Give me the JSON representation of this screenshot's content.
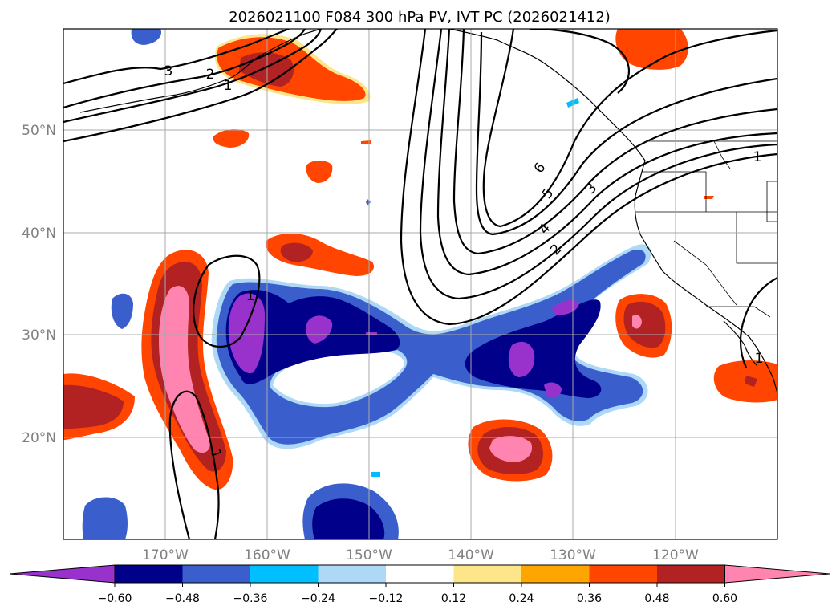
{
  "title": "2026021100 F084 300 hPa PV, IVT PC (2026021412)",
  "lat_labels": [
    "50°N",
    "40°N",
    "30°N",
    "20°N"
  ],
  "lon_labels": [
    "170°W",
    "160°W",
    "150°W",
    "140°W",
    "130°W",
    "120°W"
  ],
  "colorbar": {
    "tick_labels": [
      "−0.60",
      "−0.48",
      "−0.36",
      "−0.24",
      "−0.12",
      "0.12",
      "0.24",
      "0.36",
      "0.48",
      "0.60"
    ],
    "colors": [
      "#9932cc",
      "#00008b",
      "#3a5fcd",
      "#00bfff",
      "#add8f6",
      "#ffffff",
      "#fde68a",
      "#ffa500",
      "#ff4500",
      "#b22222",
      "#ff85b0"
    ]
  },
  "contour_labels": {
    "c3_nw": "3",
    "c2_nw": "2",
    "c1_nw": "1",
    "c6": "6",
    "c5": "5",
    "c3_e": "3",
    "c4": "4",
    "c2_e": "2",
    "c1_e": "1",
    "c1_mid": "1",
    "c1_sw": "1",
    "c1_se": "1"
  }
}
